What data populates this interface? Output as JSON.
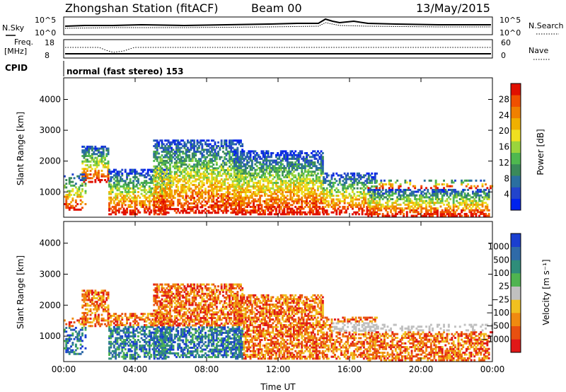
{
  "header": {
    "station": "Zhongshan Station (fitACF)",
    "beam": "Beam 00",
    "date": "13/May/2015"
  },
  "top_panels": {
    "nsky_label": "N.Sky",
    "nsky_ticks": [
      "10^5",
      "10^0"
    ],
    "nsearch_label": "N.Search",
    "nsearch_ticks": [
      "10^5",
      "10^0"
    ],
    "freq_label_1": "Freq.",
    "freq_label_2": "[MHz]",
    "freq_ticks": [
      "18",
      "8"
    ],
    "nave_label": "Nave",
    "nave_ticks": [
      "60",
      "0"
    ],
    "cpid_label": "CPID",
    "cpid_text": "normal (fast stereo) 153"
  },
  "chart_data": [
    {
      "type": "heatmap",
      "name": "power-panel",
      "ylabel": "Slant Range [km]",
      "x_ticks": [
        "00:00",
        "04:00",
        "08:00",
        "12:00",
        "16:00",
        "20:00",
        "00:00"
      ],
      "x_range_hours": [
        0,
        24
      ],
      "y_ticks": [
        1000,
        2000,
        3000,
        4000
      ],
      "ylim": [
        180,
        4700
      ],
      "colorbar": {
        "label": "Power [dB]",
        "ticks": [
          "4",
          "8",
          "12",
          "16",
          "20",
          "24",
          "28"
        ],
        "colors": [
          "#0022ee",
          "#2244cc",
          "#2a6fa0",
          "#3a8a5a",
          "#4fb84f",
          "#9ad43c",
          "#f0e020",
          "#f0b000",
          "#f08000",
          "#f05000",
          "#e01000"
        ]
      }
    },
    {
      "type": "heatmap",
      "name": "velocity-panel",
      "ylabel": "Slant Range [km]",
      "xlabel": "Time UT",
      "x_ticks": [
        "00:00",
        "04:00",
        "08:00",
        "12:00",
        "16:00",
        "20:00",
        "00:00"
      ],
      "x_range_hours": [
        0,
        24
      ],
      "y_ticks": [
        1000,
        2000,
        3000,
        4000
      ],
      "ylim": [
        180,
        4700
      ],
      "colorbar": {
        "label": "Velocity [m s⁻¹]",
        "ticks": [
          "1000",
          "500",
          "100",
          "25",
          "−25",
          "−100",
          "−500",
          "−1000"
        ],
        "colors": [
          "#1a3fd0",
          "#2f6aa8",
          "#2f8d7a",
          "#4fb450",
          "#c0c0c0",
          "#f0c020",
          "#f08a10",
          "#e85010",
          "#e01818"
        ]
      }
    }
  ],
  "colors": {
    "power_high": "#e01000",
    "power_low": "#0022ee",
    "velocity_away": "#e01818",
    "velocity_toward": "#1a3fd0",
    "ground_scatter": "#c0c0c0"
  }
}
